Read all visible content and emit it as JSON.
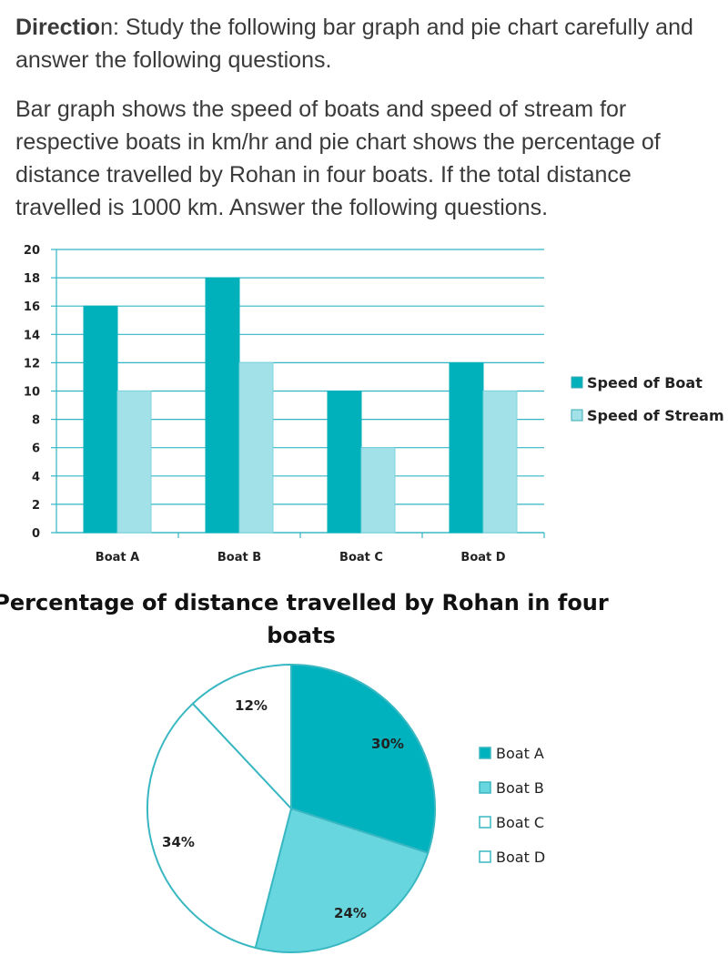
{
  "direction": {
    "bold_part": "Directio",
    "rest": "n: Study the following bar graph and pie chart carefully and answer the following questions."
  },
  "description": "Bar graph shows the speed of boats and speed of stream for respective boats in km/hr and pie chart shows the percentage of distance travelled by Rohan in four boats. If the total distance travelled is 1000 km. Answer the following questions.",
  "chart_data": [
    {
      "type": "bar",
      "title": "",
      "xlabel": "",
      "ylabel": "",
      "categories": [
        "Boat A",
        "Boat B",
        "Boat C",
        "Boat D"
      ],
      "series": [
        {
          "name": "Speed of Boat",
          "values": [
            16,
            18,
            10,
            12
          ],
          "color": "#00b0bb"
        },
        {
          "name": "Speed of Stream",
          "values": [
            10,
            12,
            6,
            10
          ],
          "color": "#a2e1e8"
        }
      ],
      "ylim": [
        0,
        20
      ],
      "yticks": [
        0,
        2,
        4,
        6,
        8,
        10,
        12,
        14,
        16,
        18,
        20
      ],
      "grid": true,
      "legend": "right"
    },
    {
      "type": "pie",
      "title": "Percentage of distance travelled by Rohan in four boats",
      "title_lines": [
        "Percentage of distance travelled by Rohan in four",
        "boats"
      ],
      "categories": [
        "Boat A",
        "Boat B",
        "Boat C",
        "Boat D"
      ],
      "values": [
        30,
        24,
        34,
        12
      ],
      "labels": [
        "30%",
        "24%",
        "34%",
        "12%"
      ],
      "colors": [
        "#00b2bd",
        "#67d6de",
        "#ffffff",
        "#ffffff"
      ],
      "edge_color": "#39b7c2",
      "legend": "right"
    }
  ]
}
